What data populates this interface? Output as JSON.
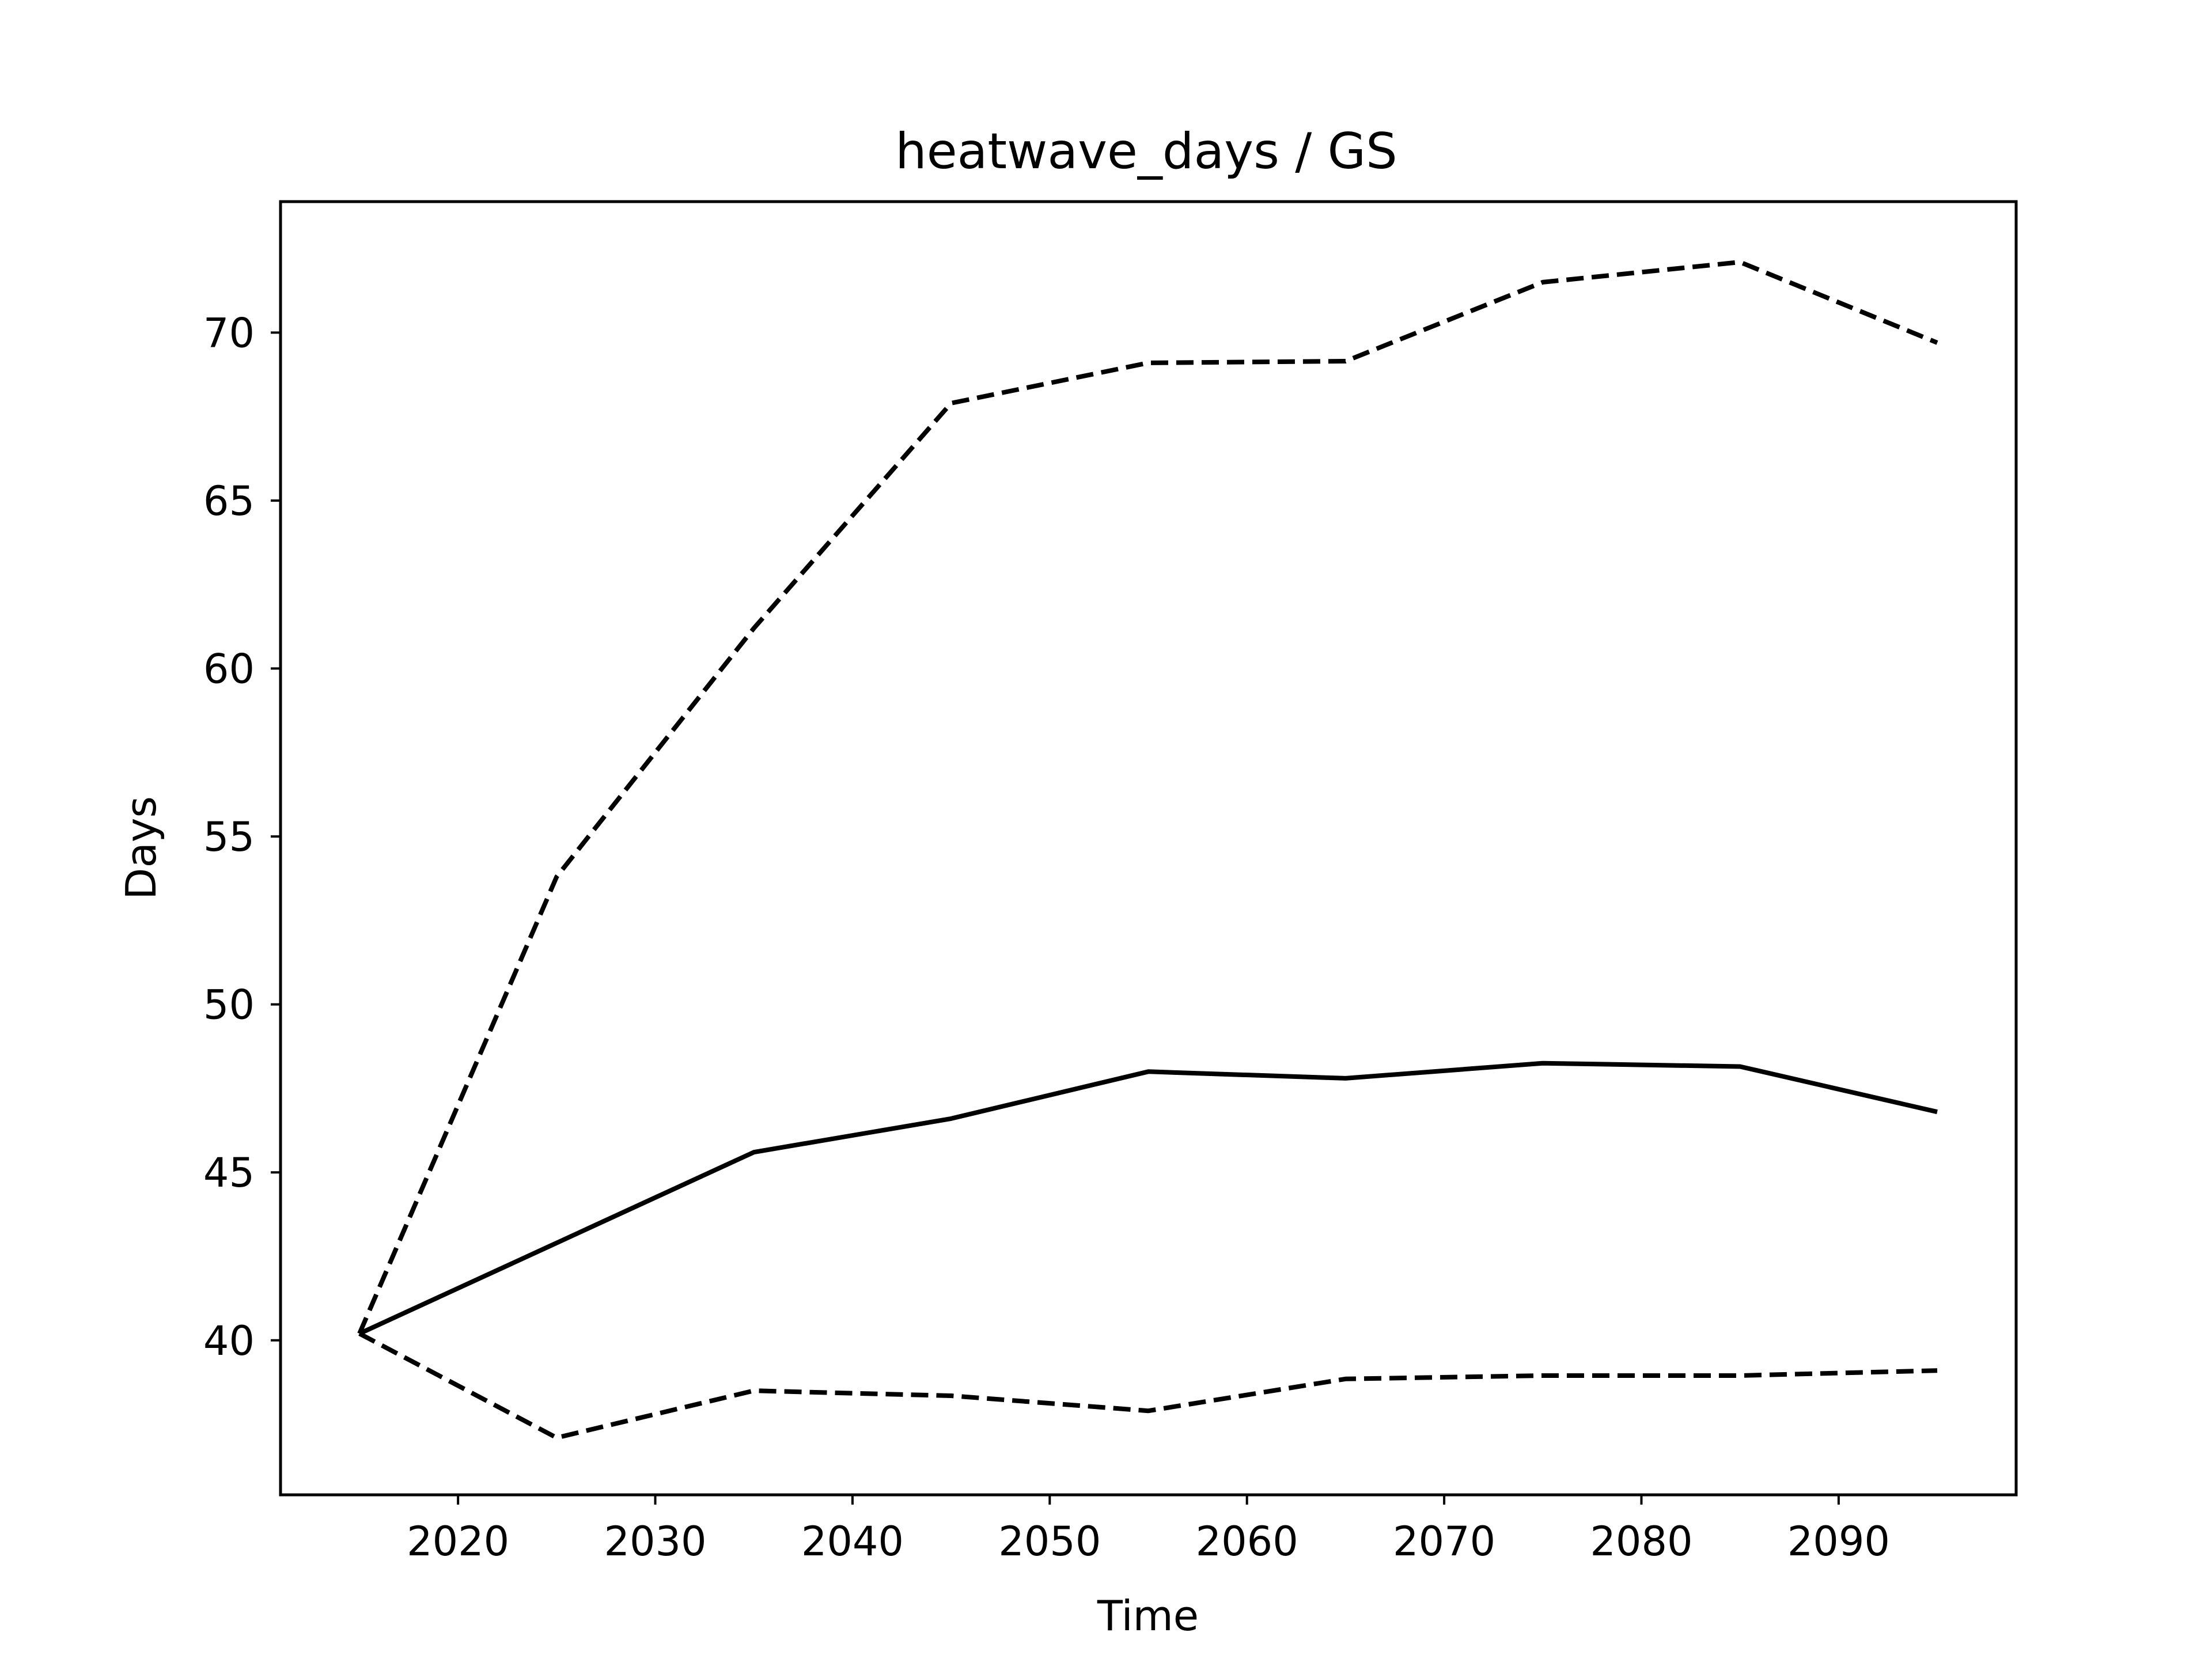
{
  "chart_data": {
    "type": "line",
    "title": "heatwave_days / GS",
    "xlabel": "Time",
    "ylabel": "Days",
    "xlim": [
      2011,
      2099
    ],
    "ylim": [
      35.4,
      73.9
    ],
    "xticks": [
      2020,
      2030,
      2040,
      2050,
      2060,
      2070,
      2080,
      2090
    ],
    "yticks": [
      40,
      45,
      50,
      55,
      60,
      65,
      70
    ],
    "grid": false,
    "legend": "none",
    "x": [
      2015,
      2025,
      2035,
      2045,
      2055,
      2065,
      2075,
      2085,
      2095
    ],
    "series": [
      {
        "style": "solid",
        "color": "#000000",
        "values": [
          40.2,
          42.9,
          45.6,
          46.6,
          48.0,
          47.8,
          48.25,
          48.15,
          46.8
        ]
      },
      {
        "style": "dashed",
        "color": "#000000",
        "values": [
          40.2,
          53.8,
          61.2,
          67.9,
          69.1,
          69.15,
          71.5,
          72.1,
          69.7
        ]
      },
      {
        "style": "dashed",
        "color": "#000000",
        "values": [
          40.2,
          37.1,
          38.5,
          38.35,
          37.9,
          38.85,
          38.95,
          38.95,
          39.1
        ]
      }
    ]
  }
}
